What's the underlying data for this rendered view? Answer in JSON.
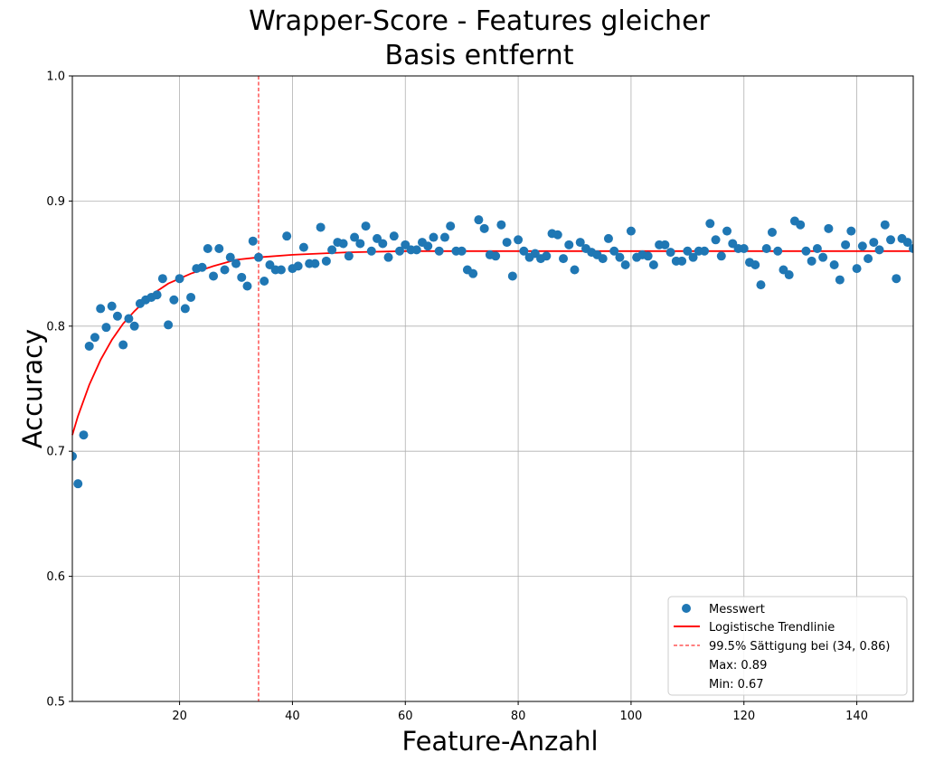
{
  "chart_data": {
    "type": "scatter",
    "title_lines": [
      "Wrapper-Score - Features gleicher",
      "Basis entfernt"
    ],
    "xlabel": "Feature-Anzahl",
    "ylabel": "Accuracy",
    "xlim": [
      1,
      150
    ],
    "ylim": [
      0.5,
      1.0
    ],
    "xticks": [
      20,
      40,
      60,
      80,
      100,
      120,
      140
    ],
    "yticks": [
      0.5,
      0.6,
      0.7,
      0.8,
      0.9,
      1.0
    ],
    "xtick_labels": [
      "20",
      "40",
      "60",
      "80",
      "100",
      "120",
      "140"
    ],
    "ytick_labels": [
      "0.5",
      "0.6",
      "0.7",
      "0.8",
      "0.9",
      "1.0"
    ],
    "grid": true,
    "legend_position": "lower-right",
    "colors": {
      "points": "#1f77b4",
      "trend": "#ff0000",
      "saturation": "#ff0000"
    },
    "series": [
      {
        "name": "Messwert",
        "kind": "scatter",
        "x": [
          1,
          2,
          3,
          4,
          5,
          6,
          7,
          8,
          9,
          10,
          11,
          12,
          13,
          14,
          15,
          16,
          17,
          18,
          19,
          20,
          21,
          22,
          23,
          24,
          25,
          26,
          27,
          28,
          29,
          30,
          31,
          32,
          33,
          34,
          35,
          36,
          37,
          38,
          39,
          40,
          41,
          42,
          43,
          44,
          45,
          46,
          47,
          48,
          49,
          50,
          51,
          52,
          53,
          54,
          55,
          56,
          57,
          58,
          59,
          60,
          61,
          62,
          63,
          64,
          65,
          66,
          67,
          68,
          69,
          70,
          71,
          72,
          73,
          74,
          75,
          76,
          77,
          78,
          79,
          80,
          81,
          82,
          83,
          84,
          85,
          86,
          87,
          88,
          89,
          90,
          91,
          92,
          93,
          94,
          95,
          96,
          97,
          98,
          99,
          100,
          101,
          102,
          103,
          104,
          105,
          106,
          107,
          108,
          109,
          110,
          111,
          112,
          113,
          114,
          115,
          116,
          117,
          118,
          119,
          120,
          121,
          122,
          123,
          124,
          125,
          126,
          127,
          128,
          129,
          130,
          131,
          132,
          133,
          134,
          135,
          136,
          137,
          138,
          139,
          140,
          141,
          142,
          143,
          144,
          145,
          146,
          147,
          148,
          149,
          150
        ],
        "y": [
          0.696,
          0.674,
          0.713,
          0.784,
          0.791,
          0.814,
          0.799,
          0.816,
          0.808,
          0.785,
          0.806,
          0.8,
          0.818,
          0.821,
          0.823,
          0.825,
          0.838,
          0.801,
          0.821,
          0.838,
          0.814,
          0.823,
          0.846,
          0.847,
          0.862,
          0.84,
          0.862,
          0.845,
          0.855,
          0.85,
          0.839,
          0.832,
          0.868,
          0.855,
          0.836,
          0.849,
          0.845,
          0.845,
          0.872,
          0.846,
          0.848,
          0.863,
          0.85,
          0.85,
          0.879,
          0.852,
          0.861,
          0.867,
          0.866,
          0.856,
          0.871,
          0.866,
          0.88,
          0.86,
          0.87,
          0.866,
          0.855,
          0.872,
          0.86,
          0.865,
          0.861,
          0.861,
          0.867,
          0.864,
          0.871,
          0.86,
          0.871,
          0.88,
          0.86,
          0.86,
          0.845,
          0.842,
          0.885,
          0.878,
          0.857,
          0.856,
          0.881,
          0.867,
          0.84,
          0.869,
          0.86,
          0.855,
          0.858,
          0.854,
          0.856,
          0.874,
          0.873,
          0.854,
          0.865,
          0.845,
          0.867,
          0.862,
          0.859,
          0.857,
          0.854,
          0.87,
          0.86,
          0.855,
          0.849,
          0.876,
          0.855,
          0.857,
          0.856,
          0.849,
          0.865,
          0.865,
          0.859,
          0.852,
          0.852,
          0.86,
          0.855,
          0.86,
          0.86,
          0.882,
          0.869,
          0.856,
          0.876,
          0.866,
          0.862,
          0.862,
          0.851,
          0.849,
          0.833,
          0.862,
          0.875,
          0.86,
          0.845,
          0.841,
          0.884,
          0.881,
          0.86,
          0.852,
          0.862,
          0.855,
          0.878,
          0.849,
          0.837,
          0.865,
          0.876,
          0.846,
          0.864,
          0.854,
          0.867,
          0.861,
          0.881,
          0.869,
          0.838,
          0.87,
          0.867,
          0.862
        ]
      },
      {
        "name": "Logistische Trendlinie",
        "kind": "line",
        "x": [
          1,
          2,
          4,
          6,
          8,
          10,
          12,
          15,
          18,
          22,
          26,
          30,
          34,
          40,
          50,
          60,
          80,
          100,
          120,
          150
        ],
        "y": [
          0.713,
          0.728,
          0.753,
          0.773,
          0.789,
          0.802,
          0.812,
          0.825,
          0.834,
          0.842,
          0.848,
          0.853,
          0.855,
          0.857,
          0.859,
          0.86,
          0.86,
          0.86,
          0.86,
          0.86
        ]
      },
      {
        "name": "99.5% Sättigung bei (34, 0.86)",
        "kind": "vline",
        "x_value": 34
      }
    ],
    "legend_extra": [
      "Max: 0.89",
      "Min: 0.67"
    ]
  }
}
